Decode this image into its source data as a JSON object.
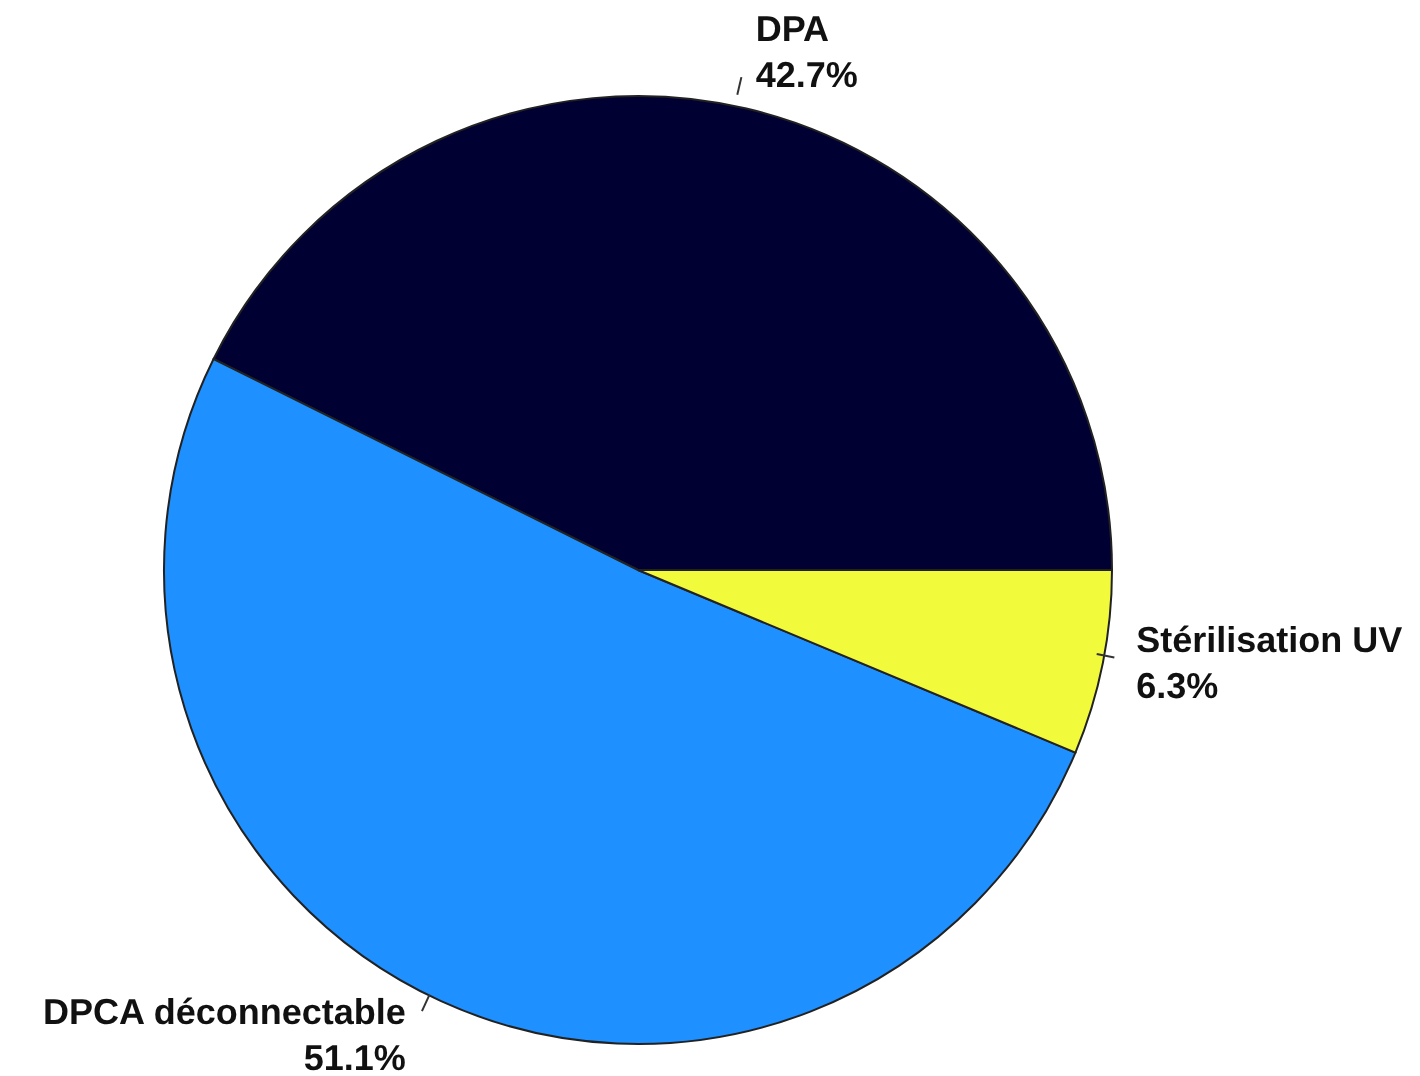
{
  "chart_data": {
    "type": "pie",
    "categories": [
      "DPA",
      "DPCA déconnectable",
      "Stérilisation UV"
    ],
    "values": [
      42.7,
      51.1,
      6.3
    ],
    "colors": [
      "#000033",
      "#1e90ff",
      "#f2fa3c"
    ],
    "value_labels": [
      "42.7%",
      "51.1%",
      "6.3%"
    ]
  }
}
